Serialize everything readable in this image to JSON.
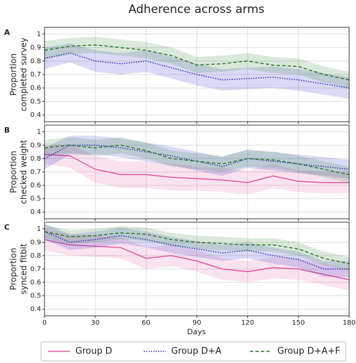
{
  "title": "Adherence across arms",
  "chart_data": [
    {
      "type": "line",
      "panel": "A",
      "ylabel": [
        "Proportion",
        "completed survey"
      ],
      "x": [
        0,
        15,
        30,
        45,
        60,
        75,
        90,
        105,
        120,
        135,
        150,
        165,
        180
      ],
      "xlim": [
        0,
        180
      ],
      "xticks": [
        0,
        30,
        60,
        90,
        120,
        150,
        180
      ],
      "ylim": [
        0.35,
        1.05
      ],
      "yticks": [
        0.4,
        0.5,
        0.6,
        0.7,
        0.8,
        0.9,
        1.0
      ],
      "grid": true,
      "series": [
        {
          "name": "Group D+A",
          "color": "#2323c8",
          "linestyle": "dotted",
          "values": [
            0.82,
            0.86,
            0.8,
            0.78,
            0.8,
            0.75,
            0.7,
            0.66,
            0.67,
            0.68,
            0.66,
            0.63,
            0.6
          ],
          "lower": [
            0.74,
            0.79,
            0.72,
            0.7,
            0.72,
            0.67,
            0.62,
            0.58,
            0.59,
            0.6,
            0.58,
            0.55,
            0.52
          ],
          "upper": [
            0.9,
            0.93,
            0.88,
            0.86,
            0.88,
            0.83,
            0.78,
            0.74,
            0.75,
            0.76,
            0.74,
            0.71,
            0.68
          ]
        },
        {
          "name": "Group D+A+F",
          "color": "#2a7a2a",
          "linestyle": "dashed",
          "values": [
            0.88,
            0.91,
            0.92,
            0.9,
            0.88,
            0.84,
            0.77,
            0.78,
            0.8,
            0.77,
            0.76,
            0.7,
            0.66
          ],
          "lower": [
            0.81,
            0.85,
            0.86,
            0.84,
            0.82,
            0.78,
            0.71,
            0.72,
            0.74,
            0.71,
            0.7,
            0.64,
            0.6
          ],
          "upper": [
            0.95,
            0.97,
            0.98,
            0.96,
            0.94,
            0.9,
            0.83,
            0.84,
            0.86,
            0.83,
            0.82,
            0.76,
            0.72
          ]
        }
      ]
    },
    {
      "type": "line",
      "panel": "B",
      "ylabel": [
        "Proportion",
        "checked weight"
      ],
      "x": [
        0,
        15,
        30,
        45,
        60,
        75,
        90,
        105,
        120,
        135,
        150,
        165,
        180
      ],
      "xlim": [
        0,
        180
      ],
      "xticks": [
        0,
        30,
        60,
        90,
        120,
        150,
        180
      ],
      "ylim": [
        0.35,
        1.05
      ],
      "yticks": [
        0.4,
        0.5,
        0.6,
        0.7,
        0.8,
        0.9,
        1.0
      ],
      "grid": true,
      "series": [
        {
          "name": "Group D",
          "color": "#e0569f",
          "linestyle": "solid",
          "values": [
            0.83,
            0.82,
            0.72,
            0.68,
            0.68,
            0.66,
            0.65,
            0.64,
            0.62,
            0.67,
            0.63,
            0.62,
            0.62
          ],
          "lower": [
            0.76,
            0.73,
            0.62,
            0.58,
            0.58,
            0.56,
            0.56,
            0.55,
            0.53,
            0.58,
            0.55,
            0.54,
            0.54
          ],
          "upper": [
            0.9,
            0.91,
            0.82,
            0.78,
            0.78,
            0.76,
            0.74,
            0.73,
            0.71,
            0.76,
            0.71,
            0.7,
            0.7
          ]
        },
        {
          "name": "Group D+A",
          "color": "#2323c8",
          "linestyle": "dotted",
          "values": [
            0.8,
            0.9,
            0.9,
            0.88,
            0.85,
            0.82,
            0.78,
            0.74,
            0.8,
            0.78,
            0.76,
            0.74,
            0.72
          ],
          "lower": [
            0.72,
            0.83,
            0.83,
            0.81,
            0.78,
            0.75,
            0.71,
            0.67,
            0.73,
            0.71,
            0.69,
            0.67,
            0.65
          ],
          "upper": [
            0.88,
            0.97,
            0.97,
            0.95,
            0.92,
            0.89,
            0.85,
            0.81,
            0.87,
            0.85,
            0.83,
            0.81,
            0.79
          ]
        },
        {
          "name": "Group D+A+F",
          "color": "#2a7a2a",
          "linestyle": "dashed",
          "values": [
            0.88,
            0.9,
            0.88,
            0.9,
            0.86,
            0.8,
            0.78,
            0.76,
            0.8,
            0.79,
            0.76,
            0.72,
            0.68
          ],
          "lower": [
            0.82,
            0.84,
            0.82,
            0.84,
            0.8,
            0.74,
            0.72,
            0.7,
            0.74,
            0.73,
            0.7,
            0.66,
            0.62
          ],
          "upper": [
            0.94,
            0.96,
            0.94,
            0.96,
            0.92,
            0.86,
            0.84,
            0.82,
            0.86,
            0.85,
            0.82,
            0.78,
            0.74
          ]
        }
      ]
    },
    {
      "type": "line",
      "panel": "C",
      "ylabel": [
        "Proportion",
        "synced fitbit"
      ],
      "xlabel": "Days",
      "x": [
        0,
        15,
        30,
        45,
        60,
        75,
        90,
        105,
        120,
        135,
        150,
        165,
        180
      ],
      "xlim": [
        0,
        180
      ],
      "xticks": [
        0,
        30,
        60,
        90,
        120,
        150,
        180
      ],
      "ylim": [
        0.35,
        1.05
      ],
      "yticks": [
        0.4,
        0.5,
        0.6,
        0.7,
        0.8,
        0.9,
        1.0
      ],
      "grid": true,
      "series": [
        {
          "name": "Group D",
          "color": "#e0569f",
          "linestyle": "solid",
          "values": [
            0.92,
            0.88,
            0.87,
            0.86,
            0.78,
            0.8,
            0.76,
            0.7,
            0.68,
            0.71,
            0.7,
            0.66,
            0.62
          ],
          "lower": [
            0.84,
            0.8,
            0.79,
            0.78,
            0.7,
            0.72,
            0.68,
            0.62,
            0.6,
            0.63,
            0.62,
            0.58,
            0.54
          ],
          "upper": [
            1.0,
            0.96,
            0.95,
            0.94,
            0.86,
            0.88,
            0.84,
            0.78,
            0.76,
            0.79,
            0.78,
            0.74,
            0.7
          ]
        },
        {
          "name": "Group D+A",
          "color": "#2323c8",
          "linestyle": "dotted",
          "values": [
            0.98,
            0.9,
            0.92,
            0.95,
            0.92,
            0.88,
            0.85,
            0.82,
            0.84,
            0.8,
            0.77,
            0.7,
            0.7
          ],
          "lower": [
            0.92,
            0.84,
            0.86,
            0.89,
            0.86,
            0.82,
            0.79,
            0.76,
            0.78,
            0.74,
            0.71,
            0.64,
            0.64
          ],
          "upper": [
            1.04,
            0.96,
            0.98,
            1.01,
            0.98,
            0.94,
            0.91,
            0.88,
            0.9,
            0.86,
            0.83,
            0.76,
            0.76
          ]
        },
        {
          "name": "Group D+A+F",
          "color": "#2a7a2a",
          "linestyle": "dashed",
          "values": [
            0.98,
            0.94,
            0.95,
            0.97,
            0.96,
            0.92,
            0.9,
            0.89,
            0.88,
            0.88,
            0.85,
            0.78,
            0.74
          ],
          "lower": [
            0.93,
            0.89,
            0.9,
            0.92,
            0.91,
            0.87,
            0.85,
            0.84,
            0.83,
            0.83,
            0.8,
            0.73,
            0.69
          ],
          "upper": [
            1.03,
            0.99,
            1.0,
            1.02,
            1.01,
            0.97,
            0.95,
            0.94,
            0.93,
            0.93,
            0.9,
            0.83,
            0.79
          ]
        }
      ]
    }
  ]
}
